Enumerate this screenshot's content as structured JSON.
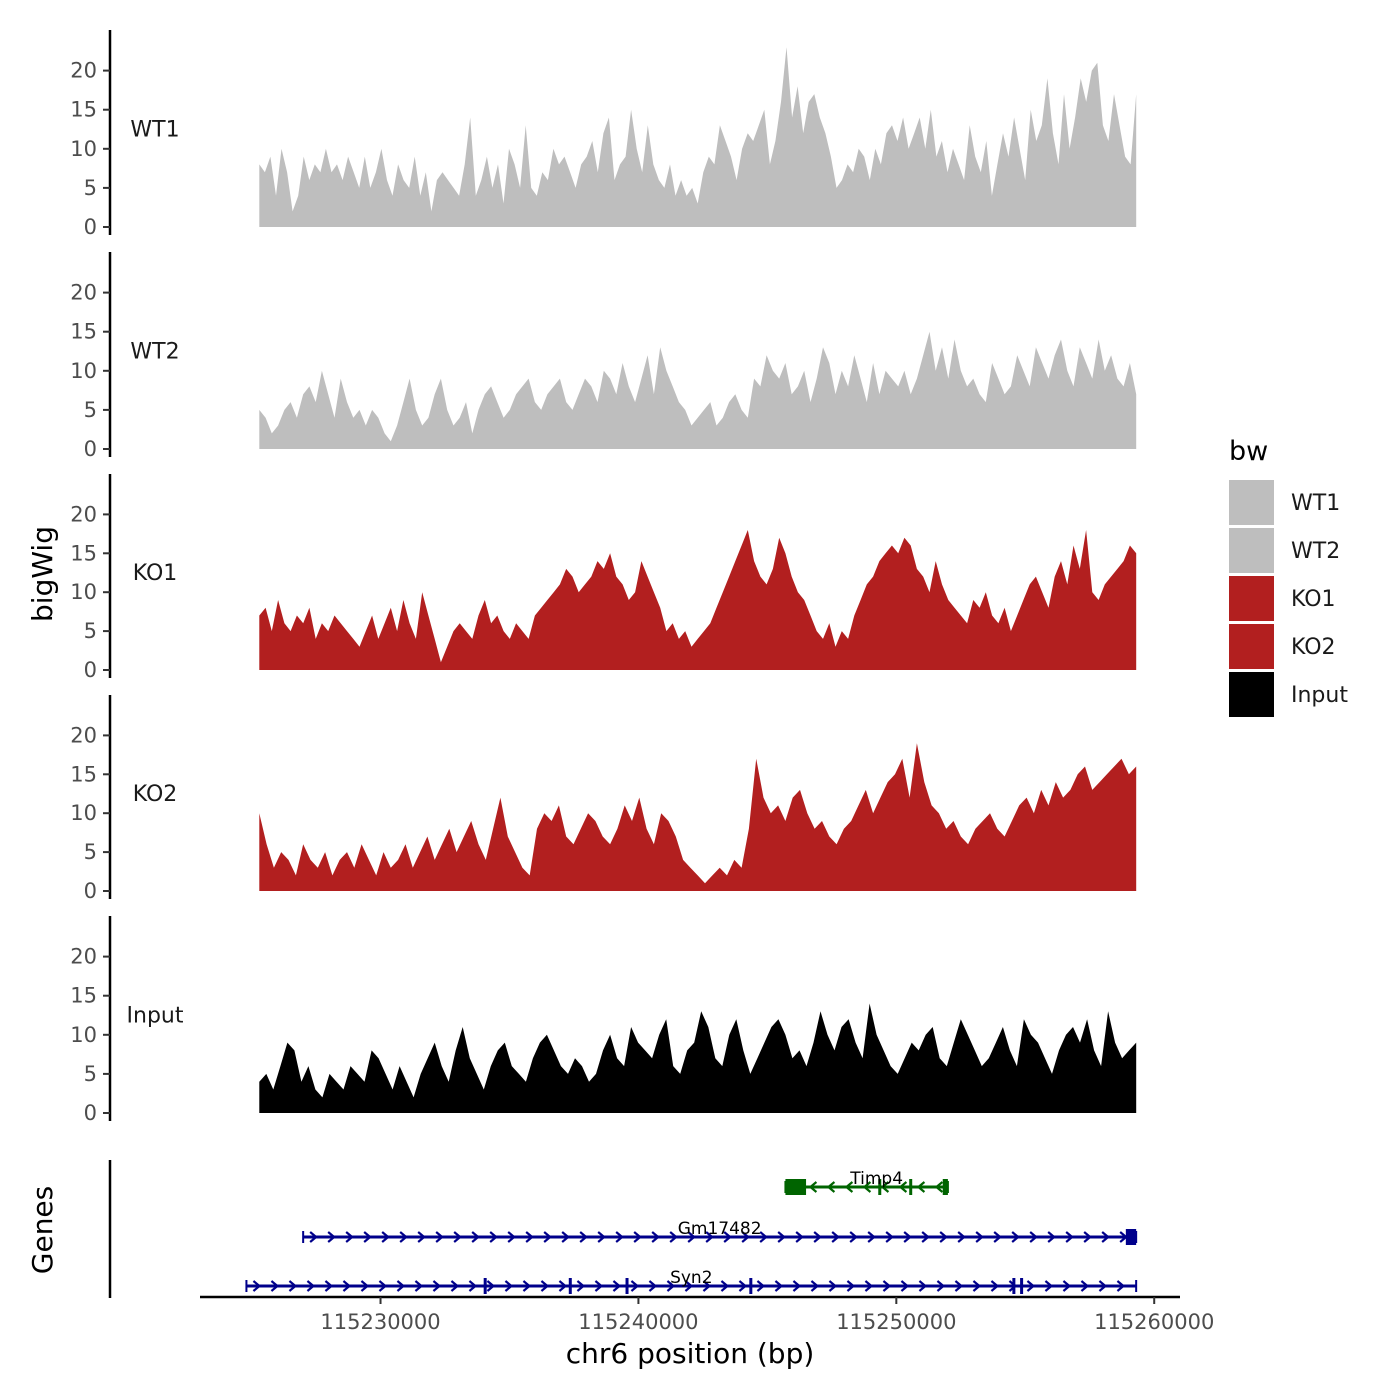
{
  "chart_data": {
    "type": "area",
    "title": "",
    "xlabel": "chr6 position (bp)",
    "ylabel": "bigWig",
    "genes_label": "Genes",
    "xlim": [
      115223000,
      115261000
    ],
    "data_range": [
      115225300,
      115259300
    ],
    "x_ticks": [
      115230000,
      115240000,
      115250000,
      115260000
    ],
    "x_tick_labels": [
      "115230000",
      "115240000",
      "115250000",
      "115260000"
    ],
    "ylim": [
      0,
      25
    ],
    "y_ticks": [
      0,
      5,
      10,
      15,
      20
    ],
    "y_tick_labels": [
      "0",
      "5",
      "10",
      "15",
      "20"
    ],
    "legend": {
      "title": "bw",
      "entries": [
        {
          "label": "WT1",
          "color": "#bebebe"
        },
        {
          "label": "WT2",
          "color": "#bebebe"
        },
        {
          "label": "KO1",
          "color": "#b21f1f"
        },
        {
          "label": "KO2",
          "color": "#b21f1f"
        },
        {
          "label": "Input",
          "color": "#000000"
        }
      ]
    },
    "series": [
      {
        "name": "WT1",
        "color": "#bebebe",
        "values": [
          8,
          7,
          9,
          4,
          10,
          7,
          2,
          4,
          9,
          6,
          8,
          7,
          10,
          7,
          8,
          6,
          9,
          7,
          5,
          9,
          5,
          7,
          10,
          6,
          4,
          8,
          6,
          5,
          9,
          4,
          7,
          2,
          6,
          7,
          6,
          5,
          4,
          8,
          14,
          4,
          6,
          9,
          5,
          8,
          3,
          10,
          8,
          5,
          13,
          5,
          4,
          7,
          6,
          10,
          8,
          9,
          7,
          5,
          8,
          9,
          11,
          7,
          12,
          14,
          6,
          8,
          9,
          15,
          10,
          7,
          13,
          8,
          6,
          5,
          8,
          4,
          6,
          4,
          5,
          3,
          7,
          9,
          8,
          13,
          11,
          9,
          6,
          10,
          12,
          11,
          13,
          15,
          8,
          11,
          16,
          23,
          14,
          18,
          12,
          16,
          17,
          14,
          12,
          9,
          5,
          6,
          8,
          7,
          10,
          9,
          6,
          10,
          8,
          12,
          13,
          11,
          14,
          10,
          12,
          14,
          10,
          15,
          9,
          11,
          7,
          10,
          8,
          6,
          13,
          9,
          7,
          11,
          4,
          8,
          12,
          9,
          14,
          10,
          6,
          15,
          11,
          13,
          19,
          12,
          8,
          17,
          10,
          14,
          19,
          16,
          20,
          21,
          13,
          11,
          17,
          13,
          9,
          8,
          17
        ]
      },
      {
        "name": "WT2",
        "color": "#bebebe",
        "values": [
          5,
          4,
          2,
          3,
          5,
          6,
          4,
          7,
          8,
          6,
          10,
          7,
          4,
          9,
          6,
          4,
          5,
          3,
          5,
          4,
          2,
          1,
          3,
          6,
          9,
          5,
          3,
          4,
          7,
          9,
          5,
          3,
          4,
          6,
          2,
          5,
          7,
          8,
          6,
          4,
          5,
          7,
          8,
          9,
          6,
          5,
          7,
          8,
          9,
          6,
          5,
          7,
          9,
          8,
          6,
          10,
          9,
          7,
          11,
          8,
          6,
          9,
          12,
          7,
          13,
          10,
          8,
          6,
          5,
          3,
          4,
          5,
          6,
          3,
          4,
          6,
          7,
          5,
          4,
          9,
          8,
          12,
          10,
          9,
          11,
          7,
          8,
          10,
          6,
          9,
          13,
          11,
          7,
          10,
          8,
          12,
          9,
          6,
          11,
          7,
          10,
          9,
          8,
          10,
          7,
          9,
          12,
          15,
          10,
          13,
          9,
          14,
          10,
          8,
          9,
          7,
          6,
          11,
          9,
          7,
          8,
          12,
          10,
          8,
          13,
          11,
          9,
          12,
          14,
          10,
          8,
          13,
          11,
          9,
          14,
          10,
          12,
          9,
          8,
          11,
          7
        ]
      },
      {
        "name": "KO1",
        "color": "#b21f1f",
        "values": [
          7,
          8,
          5,
          9,
          6,
          5,
          7,
          6,
          8,
          4,
          6,
          5,
          7,
          6,
          5,
          4,
          3,
          5,
          7,
          4,
          6,
          8,
          5,
          9,
          6,
          4,
          10,
          7,
          4,
          1,
          3,
          5,
          6,
          5,
          4,
          7,
          9,
          6,
          7,
          5,
          4,
          6,
          5,
          4,
          7,
          8,
          9,
          10,
          11,
          13,
          12,
          10,
          11,
          12,
          14,
          13,
          15,
          12,
          11,
          9,
          10,
          14,
          12,
          10,
          8,
          5,
          6,
          4,
          5,
          3,
          4,
          5,
          6,
          8,
          10,
          12,
          14,
          16,
          18,
          14,
          12,
          11,
          13,
          17,
          15,
          12,
          10,
          9,
          7,
          5,
          4,
          6,
          3,
          5,
          4,
          7,
          9,
          11,
          12,
          14,
          15,
          16,
          15,
          17,
          16,
          13,
          12,
          10,
          14,
          11,
          9,
          8,
          7,
          6,
          9,
          8,
          10,
          7,
          6,
          8,
          5,
          7,
          9,
          11,
          12,
          10,
          8,
          12,
          14,
          11,
          16,
          13,
          18,
          10,
          9,
          11,
          12,
          13,
          14,
          16,
          15
        ]
      },
      {
        "name": "KO2",
        "color": "#b21f1f",
        "values": [
          10,
          6,
          3,
          5,
          4,
          2,
          6,
          4,
          3,
          5,
          2,
          4,
          5,
          3,
          6,
          4,
          2,
          5,
          3,
          4,
          6,
          3,
          5,
          7,
          4,
          6,
          8,
          5,
          7,
          9,
          6,
          4,
          8,
          12,
          7,
          5,
          3,
          2,
          8,
          10,
          9,
          11,
          7,
          6,
          8,
          10,
          9,
          7,
          6,
          8,
          11,
          9,
          12,
          8,
          6,
          10,
          9,
          7,
          4,
          3,
          2,
          1,
          2,
          3,
          2,
          4,
          3,
          8,
          17,
          12,
          10,
          11,
          9,
          12,
          13,
          10,
          8,
          9,
          7,
          6,
          8,
          9,
          11,
          13,
          10,
          12,
          14,
          15,
          17,
          12,
          19,
          14,
          11,
          10,
          8,
          9,
          7,
          6,
          8,
          9,
          10,
          8,
          7,
          9,
          11,
          12,
          10,
          13,
          11,
          14,
          12,
          13,
          15,
          16,
          13,
          14,
          15,
          16,
          17,
          15,
          16
        ]
      },
      {
        "name": "Input",
        "color": "#000000",
        "values": [
          4,
          5,
          3,
          6,
          9,
          8,
          4,
          6,
          3,
          2,
          5,
          4,
          3,
          6,
          5,
          4,
          8,
          7,
          5,
          3,
          6,
          4,
          2,
          5,
          7,
          9,
          6,
          4,
          8,
          11,
          7,
          5,
          3,
          6,
          8,
          9,
          6,
          5,
          4,
          7,
          9,
          10,
          8,
          6,
          5,
          7,
          6,
          4,
          5,
          8,
          10,
          7,
          6,
          11,
          9,
          8,
          7,
          10,
          12,
          6,
          5,
          8,
          9,
          13,
          11,
          7,
          6,
          10,
          12,
          8,
          5,
          7,
          9,
          11,
          12,
          10,
          7,
          8,
          6,
          9,
          13,
          10,
          8,
          11,
          12,
          9,
          7,
          14,
          10,
          8,
          6,
          5,
          7,
          9,
          8,
          10,
          11,
          7,
          6,
          9,
          12,
          10,
          8,
          6,
          7,
          9,
          11,
          8,
          6,
          12,
          10,
          9,
          7,
          5,
          8,
          10,
          11,
          9,
          12,
          8,
          6,
          13,
          9,
          7,
          8,
          9
        ]
      }
    ],
    "genes": [
      {
        "name": "Timp4",
        "color": "#006400",
        "start": 115245700,
        "end": 115252000,
        "strand": "-",
        "row": 1,
        "exons": [
          [
            115245700,
            115246500
          ],
          [
            115249300,
            115249400
          ],
          [
            115250500,
            115250600
          ],
          [
            115251800,
            115252000
          ]
        ]
      },
      {
        "name": "Gm17482",
        "color": "#00008b",
        "start": 115227000,
        "end": 115259300,
        "strand": "+",
        "row": 2,
        "exons": [
          [
            115258900,
            115259300
          ]
        ]
      },
      {
        "name": "Syn2",
        "color": "#00008b",
        "start": 115224800,
        "end": 115259300,
        "strand": "+",
        "row": 3,
        "exons": [
          [
            115234000,
            115234100
          ],
          [
            115237300,
            115237400
          ],
          [
            115239500,
            115239600
          ],
          [
            115244300,
            115244400
          ],
          [
            115254500,
            115254600
          ],
          [
            115254800,
            115254900
          ]
        ]
      }
    ]
  }
}
